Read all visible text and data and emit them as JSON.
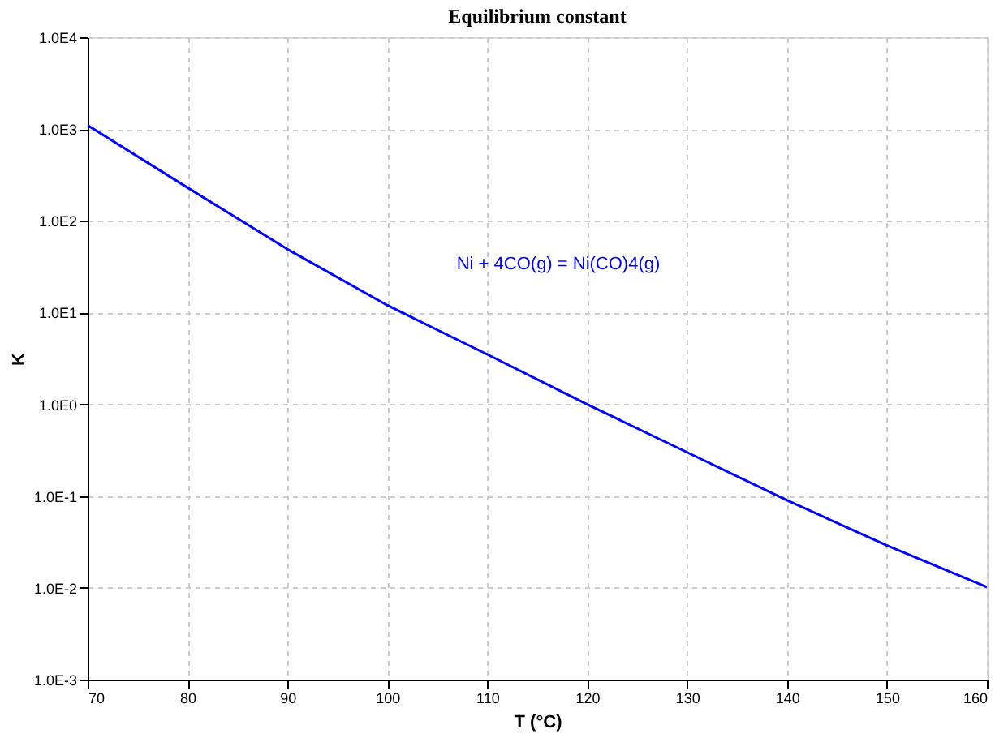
{
  "chart_data": {
    "type": "line",
    "title": "Equilibrium constant",
    "xlabel": "T (°C)",
    "ylabel": "K",
    "x": [
      70,
      80,
      90,
      100,
      110,
      120,
      130,
      140,
      150,
      160
    ],
    "series": [
      {
        "color": "#0000ff",
        "values": [
          1100,
          230,
          49,
          12,
          3.5,
          1.0,
          0.3,
          0.09,
          0.029,
          0.0102
        ]
      }
    ],
    "log": "y",
    "xlim": [
      70,
      160
    ],
    "xticks": [
      70,
      80,
      90,
      100,
      110,
      120,
      130,
      140,
      150,
      160
    ],
    "ylim": [
      0.001,
      10000
    ],
    "yticks": [
      {
        "value": 0.001,
        "label": "1.0E-3"
      },
      {
        "value": 0.01,
        "label": "1.0E-2"
      },
      {
        "value": 0.1,
        "label": "1.0E-1"
      },
      {
        "value": 1,
        "label": "1.0E0"
      },
      {
        "value": 10,
        "label": "1.0E1"
      },
      {
        "value": 100,
        "label": "1.0E2"
      },
      {
        "value": 1000,
        "label": "1.0E3"
      },
      {
        "value": 10000,
        "label": "1.0E4"
      }
    ],
    "grid": true,
    "line_style": "solid",
    "marker": "none",
    "annotations": [
      "Ni + 4CO(g) = Ni(CO)4(g)"
    ]
  }
}
